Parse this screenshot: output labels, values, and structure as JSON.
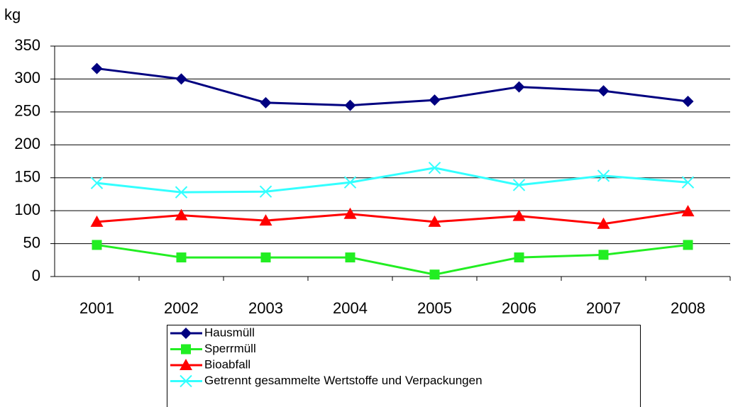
{
  "chart_data": {
    "type": "line",
    "y_label": "kg",
    "categories": [
      "2001",
      "2002",
      "2003",
      "2004",
      "2005",
      "2006",
      "2007",
      "2008"
    ],
    "series": [
      {
        "name": "Hausmüll",
        "color": "#000080",
        "marker": "diamond",
        "values": [
          316,
          300,
          264,
          260,
          268,
          288,
          282,
          266
        ]
      },
      {
        "name": "Sperrmüll",
        "color": "#22ee22",
        "marker": "square",
        "values": [
          48,
          29,
          29,
          29,
          3,
          29,
          33,
          48
        ]
      },
      {
        "name": "Bioabfall",
        "color": "#ff0000",
        "marker": "triangle",
        "values": [
          83,
          93,
          85,
          95,
          83,
          92,
          80,
          99
        ]
      },
      {
        "name": "Getrennt gesammelte Wertstoffe und Verpackungen",
        "color": "#33ffff",
        "marker": "x",
        "values": [
          142,
          128,
          129,
          143,
          165,
          139,
          153,
          143
        ]
      }
    ],
    "ylim": [
      0,
      350
    ],
    "yticks": [
      0,
      50,
      100,
      150,
      200,
      250,
      300,
      350
    ],
    "grid": true,
    "legend": "bottom"
  }
}
